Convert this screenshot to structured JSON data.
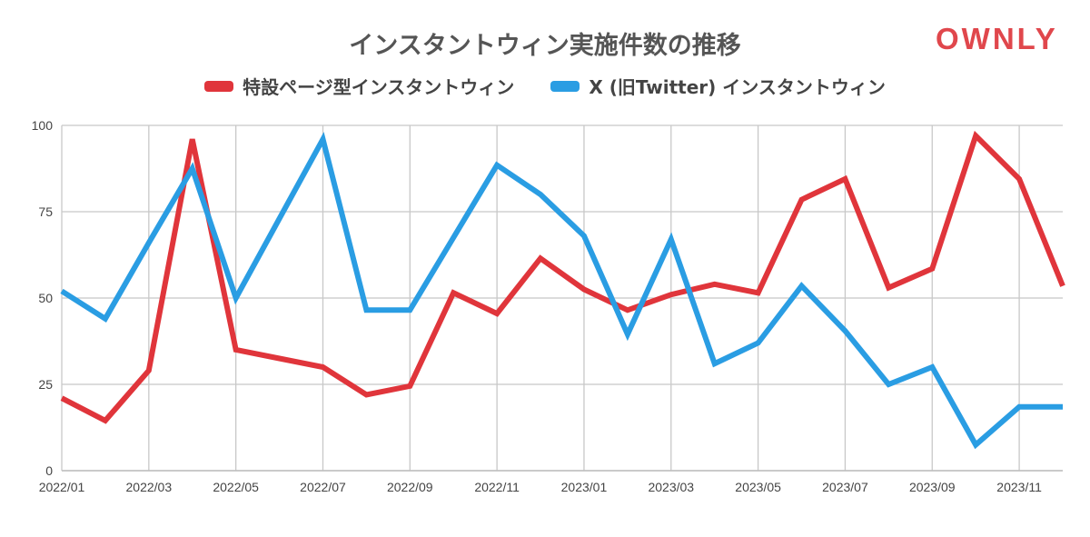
{
  "chart_data": {
    "type": "line",
    "title": "インスタントウィン実施件数の推移",
    "xlabel": "",
    "ylabel": "",
    "ylim": [
      0,
      100
    ],
    "y_ticks": [
      "0",
      "25",
      "50",
      "75",
      "100"
    ],
    "x": [
      "2022/01",
      "2022/02",
      "2022/03",
      "2022/04",
      "2022/05",
      "2022/06",
      "2022/07",
      "2022/08",
      "2022/09",
      "2022/10",
      "2022/11",
      "2022/12",
      "2023/01",
      "2023/02",
      "2023/03",
      "2023/04",
      "2023/05",
      "2023/06",
      "2023/07",
      "2023/08",
      "2023/09",
      "2023/10",
      "2023/11",
      "2023/12"
    ],
    "x_tick_labels": [
      "2022/01",
      "2022/03",
      "2022/05",
      "2022/07",
      "2022/09",
      "2022/11",
      "2023/01",
      "2023/03",
      "2023/05",
      "2023/07",
      "2023/09",
      "2023/11"
    ],
    "grid": true,
    "legend_position": "top",
    "series": [
      {
        "name": "特設ページ型インスタントウィン",
        "color": "#e0353b",
        "values": [
          21,
          14.5,
          29,
          96,
          35,
          32.5,
          30,
          22,
          24.5,
          51.5,
          45.5,
          61.5,
          52.5,
          46.5,
          51,
          54,
          51.5,
          78.5,
          84.5,
          53,
          58.5,
          97,
          84.5,
          53.5
        ]
      },
      {
        "name": "X (旧Twitter) インスタントウィン",
        "color": "#2a9de3",
        "values": [
          52,
          44,
          66,
          87.5,
          50,
          73,
          96,
          46.5,
          46.5,
          67.5,
          88.5,
          80,
          68,
          39.5,
          67,
          31,
          37,
          53.5,
          40.5,
          25,
          30,
          7.5,
          18.5,
          18.5
        ]
      }
    ]
  },
  "brand": {
    "logo_text": "OWNLY",
    "color": "#e0474c"
  }
}
